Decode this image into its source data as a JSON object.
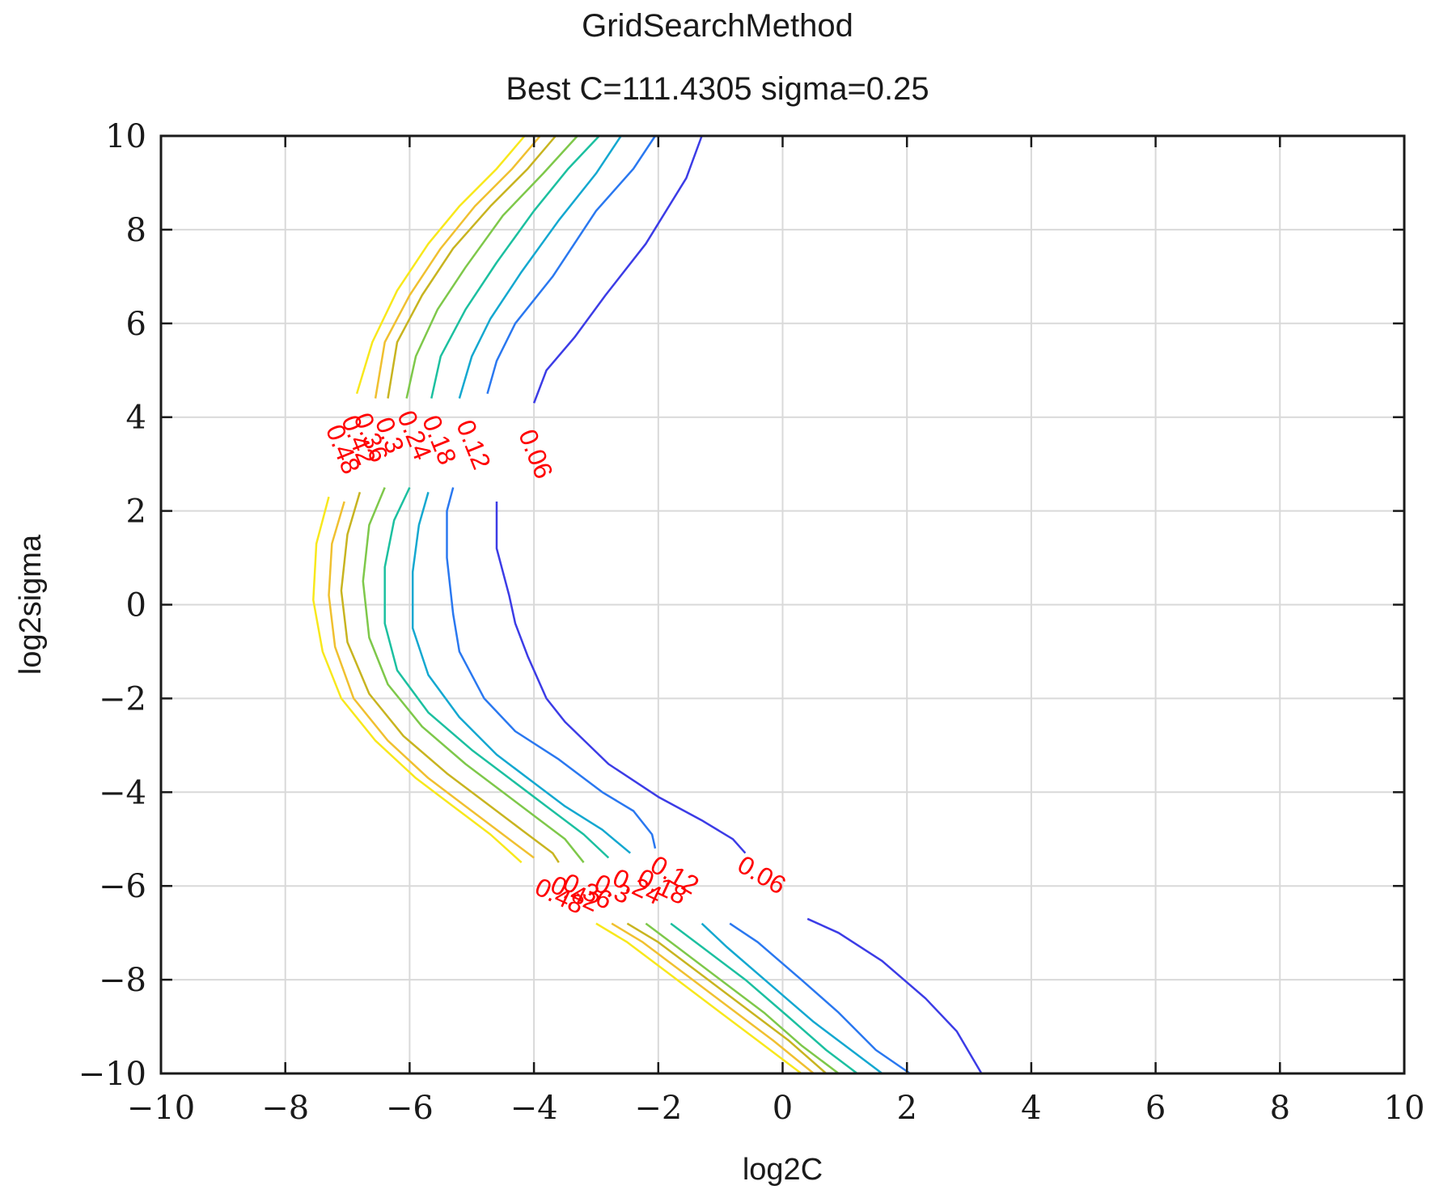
{
  "chart_data": {
    "type": "contour",
    "title": "GridSearchMethod",
    "subtitle": "Best C=111.4305 sigma=0.25",
    "xlabel": "log2C",
    "ylabel": "log2sigma",
    "xlim": [
      -10,
      10
    ],
    "ylim": [
      -10,
      10
    ],
    "xticks": [
      -10,
      -8,
      -6,
      -4,
      -2,
      0,
      2,
      4,
      6,
      8,
      10
    ],
    "yticks": [
      -10,
      -8,
      -6,
      -4,
      -2,
      0,
      2,
      4,
      6,
      8,
      10
    ],
    "xtick_labels": [
      "−10",
      "−8",
      "−6",
      "−4",
      "−2",
      "0",
      "2",
      "4",
      "6",
      "8",
      "10"
    ],
    "ytick_labels": [
      "−10",
      "−8",
      "−6",
      "−4",
      "−2",
      "0",
      "2",
      "4",
      "6",
      "8",
      "10"
    ],
    "grid": true,
    "levels": [
      {
        "value": 0.06,
        "label": "0.06",
        "color": "#3c3ce6",
        "label_pos": [
          [
            -4.0,
            3.2,
            68
          ],
          [
            -0.35,
            -5.8,
            30
          ]
        ],
        "segments": [
          [
            [
              -1.3,
              10
            ],
            [
              -1.55,
              9.1
            ],
            [
              -2.2,
              7.7
            ],
            [
              -2.85,
              6.6
            ],
            [
              -3.35,
              5.7
            ],
            [
              -3.8,
              5.0
            ],
            [
              -4.0,
              4.3
            ]
          ],
          [
            [
              -4.6,
              2.2
            ],
            [
              -4.6,
              1.2
            ],
            [
              -4.4,
              0.2
            ],
            [
              -4.3,
              -0.4
            ],
            [
              -4.1,
              -1.1
            ],
            [
              -3.8,
              -2.0
            ],
            [
              -3.5,
              -2.5
            ],
            [
              -2.8,
              -3.4
            ],
            [
              -2.0,
              -4.1
            ],
            [
              -1.3,
              -4.6
            ],
            [
              -0.8,
              -5.0
            ],
            [
              -0.6,
              -5.3
            ]
          ],
          [
            [
              0.4,
              -6.7
            ],
            [
              0.9,
              -7.0
            ],
            [
              1.6,
              -7.6
            ],
            [
              2.3,
              -8.4
            ],
            [
              2.8,
              -9.1
            ],
            [
              3.2,
              -10
            ]
          ]
        ]
      },
      {
        "value": 0.12,
        "label": "0.12",
        "color": "#2a78f0",
        "label_pos": [
          [
            -5.0,
            3.4,
            68
          ],
          [
            -1.75,
            -5.8,
            30
          ]
        ],
        "segments": [
          [
            [
              -2.05,
              10
            ],
            [
              -2.4,
              9.3
            ],
            [
              -3.0,
              8.4
            ],
            [
              -3.7,
              7.0
            ],
            [
              -4.3,
              6.0
            ],
            [
              -4.6,
              5.2
            ],
            [
              -4.75,
              4.5
            ]
          ],
          [
            [
              -5.3,
              2.5
            ],
            [
              -5.4,
              2.0
            ],
            [
              -5.4,
              1.0
            ],
            [
              -5.3,
              -0.2
            ],
            [
              -5.2,
              -1.0
            ],
            [
              -4.8,
              -2.0
            ],
            [
              -4.3,
              -2.7
            ],
            [
              -3.6,
              -3.3
            ],
            [
              -2.9,
              -4.0
            ],
            [
              -2.4,
              -4.4
            ],
            [
              -2.1,
              -4.9
            ],
            [
              -2.05,
              -5.2
            ]
          ],
          [
            [
              -0.85,
              -6.8
            ],
            [
              -0.4,
              -7.2
            ],
            [
              0.3,
              -8.0
            ],
            [
              0.9,
              -8.7
            ],
            [
              1.5,
              -9.5
            ],
            [
              2.05,
              -10
            ]
          ]
        ]
      },
      {
        "value": 0.18,
        "label": "0.18",
        "color": "#14a8d0",
        "label_pos": [
          [
            -5.55,
            3.5,
            68
          ],
          [
            -1.95,
            -6.05,
            25
          ]
        ],
        "segments": [
          [
            [
              -2.6,
              10
            ],
            [
              -3.0,
              9.2
            ],
            [
              -3.6,
              8.2
            ],
            [
              -4.2,
              7.1
            ],
            [
              -4.7,
              6.1
            ],
            [
              -5.0,
              5.3
            ],
            [
              -5.2,
              4.4
            ]
          ],
          [
            [
              -5.7,
              2.4
            ],
            [
              -5.85,
              1.7
            ],
            [
              -5.95,
              0.7
            ],
            [
              -5.95,
              -0.5
            ],
            [
              -5.7,
              -1.5
            ],
            [
              -5.2,
              -2.4
            ],
            [
              -4.6,
              -3.2
            ],
            [
              -4.0,
              -3.8
            ],
            [
              -3.5,
              -4.3
            ],
            [
              -2.9,
              -4.8
            ],
            [
              -2.45,
              -5.3
            ]
          ],
          [
            [
              -1.3,
              -6.8
            ],
            [
              -0.9,
              -7.3
            ],
            [
              -0.2,
              -8.1
            ],
            [
              0.5,
              -8.9
            ],
            [
              1.1,
              -9.5
            ],
            [
              1.6,
              -10
            ]
          ]
        ]
      },
      {
        "value": 0.24,
        "label": "0.24",
        "color": "#1cc0a0",
        "label_pos": [
          [
            -5.95,
            3.6,
            68
          ],
          [
            -2.35,
            -6.05,
            25
          ]
        ],
        "segments": [
          [
            [
              -2.95,
              10
            ],
            [
              -3.45,
              9.3
            ],
            [
              -4.0,
              8.4
            ],
            [
              -4.6,
              7.3
            ],
            [
              -5.1,
              6.3
            ],
            [
              -5.5,
              5.3
            ],
            [
              -5.65,
              4.4
            ]
          ],
          [
            [
              -6.0,
              2.5
            ],
            [
              -6.25,
              1.8
            ],
            [
              -6.4,
              0.8
            ],
            [
              -6.4,
              -0.4
            ],
            [
              -6.2,
              -1.4
            ],
            [
              -5.7,
              -2.3
            ],
            [
              -5.0,
              -3.1
            ],
            [
              -4.4,
              -3.7
            ],
            [
              -3.8,
              -4.3
            ],
            [
              -3.2,
              -4.9
            ],
            [
              -2.8,
              -5.4
            ]
          ],
          [
            [
              -1.8,
              -6.8
            ],
            [
              -1.3,
              -7.3
            ],
            [
              -0.6,
              -8.0
            ],
            [
              0.1,
              -8.8
            ],
            [
              0.7,
              -9.5
            ],
            [
              1.2,
              -10
            ]
          ]
        ]
      },
      {
        "value": 0.3,
        "label": "0.3",
        "color": "#7ec84a",
        "label_pos": [
          [
            -6.35,
            3.6,
            68
          ],
          [
            -2.75,
            -6.1,
            25
          ]
        ],
        "segments": [
          [
            [
              -3.3,
              10
            ],
            [
              -3.85,
              9.2
            ],
            [
              -4.5,
              8.3
            ],
            [
              -5.1,
              7.2
            ],
            [
              -5.55,
              6.3
            ],
            [
              -5.9,
              5.3
            ],
            [
              -6.05,
              4.4
            ]
          ],
          [
            [
              -6.4,
              2.5
            ],
            [
              -6.65,
              1.7
            ],
            [
              -6.75,
              0.5
            ],
            [
              -6.65,
              -0.7
            ],
            [
              -6.35,
              -1.7
            ],
            [
              -5.8,
              -2.6
            ],
            [
              -5.1,
              -3.4
            ],
            [
              -4.5,
              -4.0
            ],
            [
              -3.9,
              -4.6
            ],
            [
              -3.5,
              -5.0
            ],
            [
              -3.2,
              -5.5
            ]
          ],
          [
            [
              -2.2,
              -6.8
            ],
            [
              -1.7,
              -7.3
            ],
            [
              -1.0,
              -8.0
            ],
            [
              -0.3,
              -8.7
            ],
            [
              0.3,
              -9.4
            ],
            [
              0.9,
              -10
            ]
          ]
        ]
      },
      {
        "value": 0.36,
        "label": "0.36",
        "color": "#c8b420",
        "label_pos": [
          [
            -6.65,
            3.55,
            68
          ],
          [
            -3.15,
            -6.15,
            25
          ]
        ],
        "segments": [
          [
            [
              -3.65,
              10
            ],
            [
              -4.1,
              9.3
            ],
            [
              -4.7,
              8.5
            ],
            [
              -5.3,
              7.6
            ],
            [
              -5.8,
              6.6
            ],
            [
              -6.2,
              5.6
            ],
            [
              -6.35,
              4.4
            ]
          ],
          [
            [
              -6.8,
              2.4
            ],
            [
              -7.0,
              1.5
            ],
            [
              -7.1,
              0.3
            ],
            [
              -7.0,
              -0.8
            ],
            [
              -6.65,
              -1.9
            ],
            [
              -6.1,
              -2.8
            ],
            [
              -5.4,
              -3.6
            ],
            [
              -4.8,
              -4.2
            ],
            [
              -4.2,
              -4.8
            ],
            [
              -3.7,
              -5.3
            ],
            [
              -3.6,
              -5.5
            ]
          ],
          [
            [
              -2.5,
              -6.8
            ],
            [
              -2.0,
              -7.2
            ],
            [
              -1.3,
              -7.9
            ],
            [
              -0.6,
              -8.6
            ],
            [
              0.1,
              -9.3
            ],
            [
              0.7,
              -10
            ]
          ]
        ]
      },
      {
        "value": 0.42,
        "label": "0.42",
        "color": "#f0c030",
        "label_pos": [
          [
            -6.85,
            3.5,
            68
          ],
          [
            -3.35,
            -6.2,
            25
          ]
        ],
        "segments": [
          [
            [
              -3.9,
              10
            ],
            [
              -4.35,
              9.3
            ],
            [
              -4.95,
              8.5
            ],
            [
              -5.5,
              7.6
            ],
            [
              -6.0,
              6.6
            ],
            [
              -6.4,
              5.6
            ],
            [
              -6.55,
              4.4
            ]
          ],
          [
            [
              -7.05,
              2.2
            ],
            [
              -7.25,
              1.3
            ],
            [
              -7.3,
              0.2
            ],
            [
              -7.2,
              -0.9
            ],
            [
              -6.9,
              -2.0
            ],
            [
              -6.35,
              -2.9
            ],
            [
              -5.7,
              -3.7
            ],
            [
              -5.1,
              -4.3
            ],
            [
              -4.5,
              -4.9
            ],
            [
              -4.0,
              -5.4
            ]
          ],
          [
            [
              -2.75,
              -6.8
            ],
            [
              -2.25,
              -7.2
            ],
            [
              -1.55,
              -7.9
            ],
            [
              -0.85,
              -8.6
            ],
            [
              -0.15,
              -9.3
            ],
            [
              0.5,
              -10
            ]
          ]
        ]
      },
      {
        "value": 0.48,
        "label": "0.48",
        "color": "#f8e81c",
        "label_pos": [
          [
            -7.1,
            3.3,
            68
          ],
          [
            -3.6,
            -6.25,
            25
          ]
        ],
        "segments": [
          [
            [
              -4.15,
              10
            ],
            [
              -4.6,
              9.3
            ],
            [
              -5.2,
              8.5
            ],
            [
              -5.7,
              7.7
            ],
            [
              -6.2,
              6.7
            ],
            [
              -6.6,
              5.6
            ],
            [
              -6.85,
              4.5
            ]
          ],
          [
            [
              -7.3,
              2.3
            ],
            [
              -7.5,
              1.3
            ],
            [
              -7.55,
              0.1
            ],
            [
              -7.4,
              -1.0
            ],
            [
              -7.1,
              -2.0
            ],
            [
              -6.55,
              -2.9
            ],
            [
              -5.9,
              -3.7
            ],
            [
              -5.3,
              -4.3
            ],
            [
              -4.7,
              -4.9
            ],
            [
              -4.2,
              -5.5
            ]
          ],
          [
            [
              -3.0,
              -6.8
            ],
            [
              -2.5,
              -7.2
            ],
            [
              -1.8,
              -7.9
            ],
            [
              -1.1,
              -8.6
            ],
            [
              -0.4,
              -9.3
            ],
            [
              0.3,
              -10
            ]
          ]
        ]
      }
    ]
  }
}
